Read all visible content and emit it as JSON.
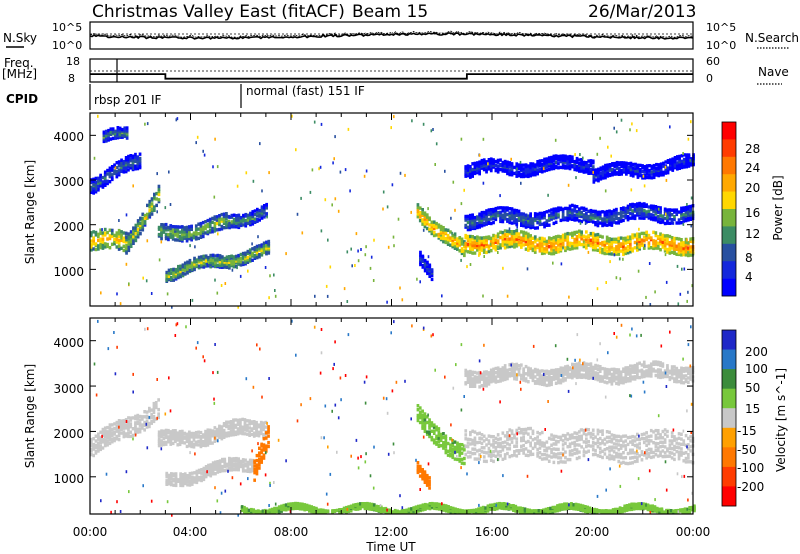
{
  "header": {
    "title": "Christmas Valley East (fitACF)",
    "beam": "Beam 15",
    "date": "26/Mar/2013"
  },
  "summary_panel": {
    "nsky_label": "N.Sky",
    "nsearch_label": "N.Search",
    "noise_tick_top": "10^5",
    "noise_tick_bottom": "10^0",
    "freq_label_1": "Freq.",
    "freq_label_2": "[MHz]",
    "freq_ticks": [
      "18",
      "8"
    ],
    "nave_label": "Nave",
    "nave_ticks": [
      "60",
      "0"
    ],
    "cpid_label": "CPID",
    "cpid_segments": [
      {
        "start": "00:00",
        "end": "06:00",
        "label": "rbsp 201 IF"
      },
      {
        "start": "06:00",
        "end": "24:00",
        "label": "normal (fast) 151 IF"
      }
    ],
    "frequency_mhz": [
      {
        "start": 0,
        "end": 3,
        "value": 11.0
      },
      {
        "start": 3,
        "end": 15,
        "value": 9.0
      },
      {
        "start": 15,
        "end": 24,
        "value": 11.0
      }
    ]
  },
  "chart_data": [
    {
      "type": "heatmap",
      "name": "power",
      "ylabel": "Slant Range [km]",
      "xlabel": "",
      "x_range_hours": [
        0,
        24
      ],
      "ylim": [
        180,
        4500
      ],
      "y_ticks": [
        "1000",
        "2000",
        "3000",
        "4000"
      ],
      "colorbar_label": "Power [dB]",
      "colorbar_ticks": [
        "28",
        "24",
        "20",
        "16",
        "12",
        "8",
        "4"
      ],
      "colorbar_colors": [
        "#ff0000",
        "#ff3c00",
        "#ff7800",
        "#ffa800",
        "#ffd700",
        "#78b43c",
        "#3c8c64",
        "#2850a0",
        "#1428dc",
        "#0000ff"
      ],
      "bands": [
        {
          "t0": 0.0,
          "t1": 1.4,
          "r0": 1600,
          "r1": 1600,
          "w": 450,
          "p": 22
        },
        {
          "t0": 1.4,
          "t1": 2.7,
          "r0": 1600,
          "r1": 2600,
          "w": 400,
          "p": 18
        },
        {
          "t0": 2.7,
          "t1": 5.5,
          "r0": 1750,
          "r1": 2000,
          "w": 350,
          "p": 16
        },
        {
          "t0": 5.5,
          "t1": 7.0,
          "r0": 2050,
          "r1": 2300,
          "w": 300,
          "p": 12
        },
        {
          "t0": 3.0,
          "t1": 7.1,
          "r0": 900,
          "r1": 1400,
          "w": 280,
          "p": 18
        },
        {
          "t0": 13.0,
          "t1": 14.9,
          "r0": 2300,
          "r1": 1350,
          "w": 350,
          "p": 24
        },
        {
          "t0": 13.1,
          "t1": 13.6,
          "r0": 1300,
          "r1": 900,
          "w": 300,
          "p": 8
        },
        {
          "t0": 14.9,
          "t1": 24.0,
          "r0": 1600,
          "r1": 1550,
          "w": 400,
          "p": 26
        },
        {
          "t0": 14.9,
          "t1": 24.0,
          "r0": 2100,
          "r1": 2250,
          "w": 350,
          "p": 10
        },
        {
          "t0": 14.9,
          "t1": 20.0,
          "r0": 3200,
          "r1": 3350,
          "w": 300,
          "p": 6
        },
        {
          "t0": 20.0,
          "t1": 24.0,
          "r0": 3100,
          "r1": 3350,
          "w": 300,
          "p": 5
        },
        {
          "t0": 0.0,
          "t1": 2.0,
          "r0": 2900,
          "r1": 3400,
          "w": 350,
          "p": 10
        },
        {
          "t0": 0.5,
          "t1": 1.5,
          "r0": 3900,
          "r1": 4000,
          "w": 250,
          "p": 12
        }
      ]
    },
    {
      "type": "heatmap",
      "name": "velocity",
      "ylabel": "Slant Range [km]",
      "xlabel": "Time UT",
      "x_range_hours": [
        0,
        24
      ],
      "ylim": [
        180,
        4500
      ],
      "y_ticks": [
        "1000",
        "2000",
        "3000",
        "4000"
      ],
      "x_ticks": [
        "00:00",
        "04:00",
        "08:00",
        "12:00",
        "16:00",
        "20:00",
        "00:00"
      ],
      "colorbar_label": "Velocity [m s^-1]",
      "colorbar_ticks": [
        "200",
        "100",
        "50",
        "15",
        "-15",
        "-50",
        "-100",
        "-200"
      ],
      "colorbar_colors": [
        "#1e28c8",
        "#2878c8",
        "#3c8c3c",
        "#78c83c",
        "#c8c8c8",
        "#ffa000",
        "#ff7800",
        "#ff3c00",
        "#ff0000"
      ],
      "bands": [
        {
          "t0": 0.0,
          "t1": 2.7,
          "r0": 1600,
          "r1": 2500,
          "w": 450,
          "v": -5
        },
        {
          "t0": 2.7,
          "t1": 7.0,
          "r0": 1750,
          "r1": 2100,
          "w": 350,
          "v": 0
        },
        {
          "t0": 3.0,
          "t1": 6.5,
          "r0": 900,
          "r1": 1300,
          "w": 280,
          "v": 0
        },
        {
          "t0": 6.5,
          "t1": 7.1,
          "r0": 1200,
          "r1": 1900,
          "w": 500,
          "v": -60
        },
        {
          "t0": 13.0,
          "t1": 14.9,
          "r0": 2300,
          "r1": 1400,
          "w": 450,
          "v": 30
        },
        {
          "t0": 13.0,
          "t1": 13.5,
          "r0": 1200,
          "r1": 900,
          "w": 250,
          "v": -60
        },
        {
          "t0": 14.9,
          "t1": 24.0,
          "r0": 1700,
          "r1": 1650,
          "w": 650,
          "v": 0
        },
        {
          "t0": 14.9,
          "t1": 24.0,
          "r0": 3200,
          "r1": 3300,
          "w": 350,
          "v": 0
        },
        {
          "t0": 6.0,
          "t1": 24.0,
          "r0": 250,
          "r1": 250,
          "w": 120,
          "v": 30
        }
      ]
    }
  ]
}
